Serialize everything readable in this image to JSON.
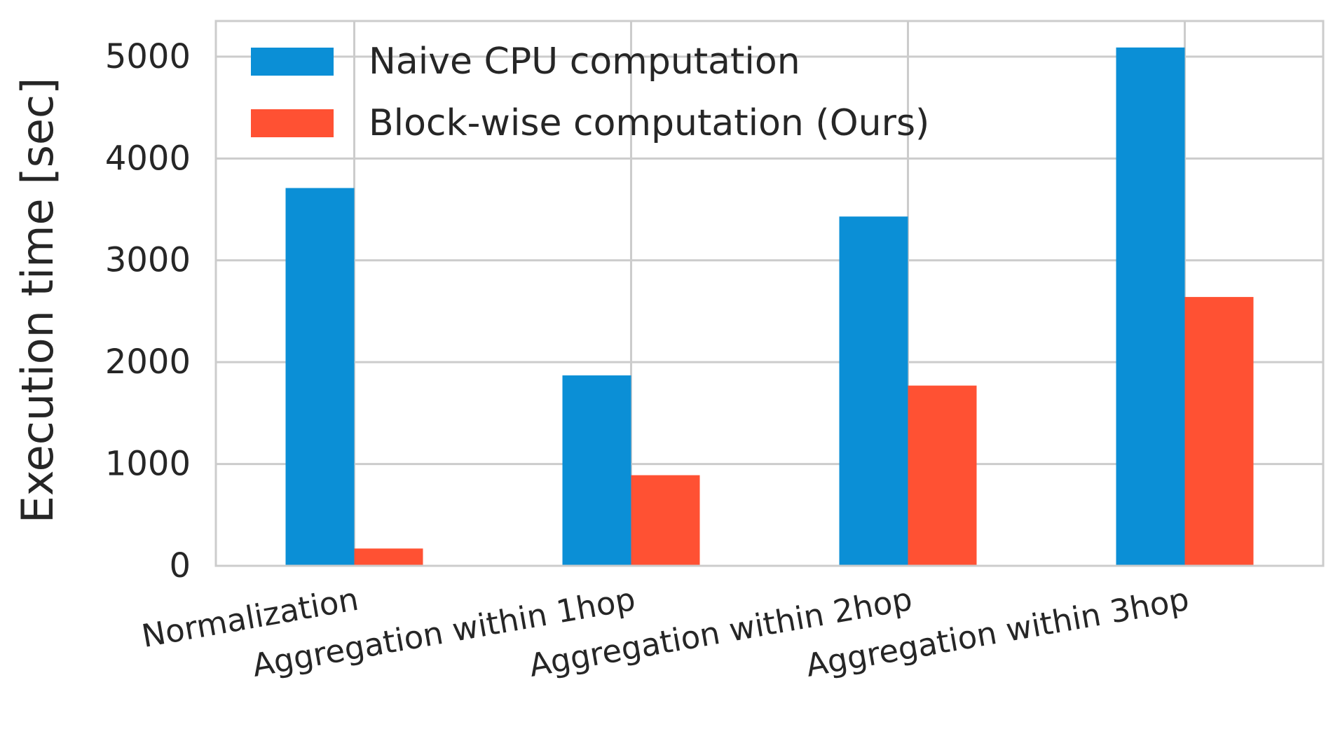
{
  "chart_data": {
    "type": "bar",
    "title": "",
    "xlabel": "",
    "ylabel": "Execution time [sec]",
    "categories": [
      "Normalization",
      "Aggregation within 1hop",
      "Aggregation within 2hop",
      "Aggregation within 3hop"
    ],
    "series": [
      {
        "name": "Naive CPU computation",
        "color": "#0b8fd6",
        "values": [
          3710,
          1870,
          3430,
          5090
        ]
      },
      {
        "name": "Block-wise computation (Ours)",
        "color": "#ff5133",
        "values": [
          170,
          890,
          1770,
          2640
        ]
      }
    ],
    "ylim": [
      0,
      5350
    ],
    "yticks": [
      0,
      1000,
      2000,
      3000,
      4000,
      5000
    ],
    "grid": true,
    "legend_position": "top-left"
  }
}
